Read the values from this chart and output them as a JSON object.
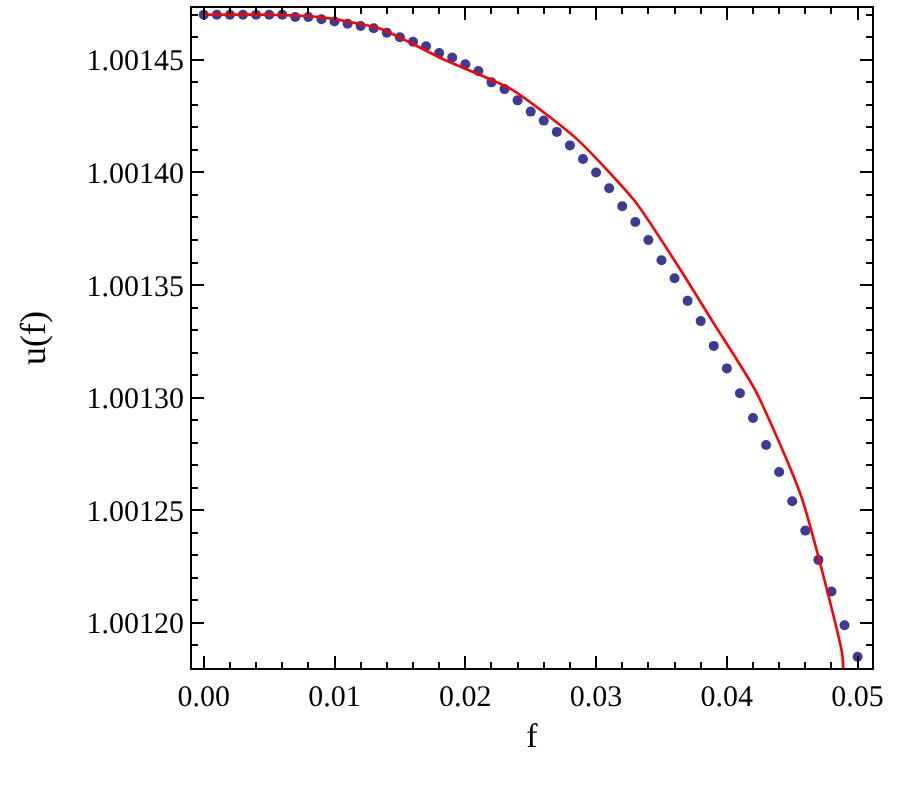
{
  "chart_data": {
    "type": "scatter",
    "xlabel": "f",
    "ylabel": "u(f)",
    "xlim": [
      -0.0009,
      0.0511
    ],
    "ylim": [
      1.00118,
      1.001473
    ],
    "xticks": [
      {
        "value": 0,
        "label": "0.00"
      },
      {
        "value": 0.01,
        "label": "0.01"
      },
      {
        "value": 0.02,
        "label": "0.02"
      },
      {
        "value": 0.03,
        "label": "0.03"
      },
      {
        "value": 0.04,
        "label": "0.04"
      },
      {
        "value": 0.05,
        "label": "0.05"
      }
    ],
    "yticks": [
      {
        "value": 1.0012,
        "label": "1.00120"
      },
      1.00125,
      {
        "value": 1.0013,
        "label": "1.00130"
      },
      1.00135,
      {
        "value": 1.0014,
        "label": "1.00140"
      },
      1.00145
    ],
    "marker": "circle",
    "series": [
      {
        "color": "#3c3c96",
        "x": [
          0,
          0.001,
          0.002,
          0.003,
          0.004,
          0.005,
          0.006,
          0.007,
          0.008,
          0.009,
          0.01,
          0.011,
          0.012,
          0.013,
          0.014,
          0.015,
          0.016,
          0.017,
          0.018,
          0.019,
          0.02,
          0.021,
          0.022,
          0.023,
          0.024,
          0.025,
          0.026,
          0.027,
          0.028,
          0.029,
          0.03,
          0.031,
          0.032,
          0.033,
          0.034,
          0.035,
          0.036,
          0.037,
          0.038,
          0.039,
          0.04,
          0.041,
          0.042,
          0.043,
          0.044,
          0.045,
          0.046,
          0.047,
          0.048,
          0.049,
          0.05
        ],
        "values": [
          1.00147,
          1.00147,
          1.00147,
          1.00147,
          1.00147,
          1.00147,
          1.00147,
          1.001469,
          1.001469,
          1.001468,
          1.001467,
          1.001466,
          1.001465,
          1.001464,
          1.001462,
          1.00146,
          1.001458,
          1.001456,
          1.001453,
          1.001451,
          1.001448,
          1.001445,
          1.00144,
          1.001437,
          1.001432,
          1.001427,
          1.001423,
          1.001418,
          1.001412,
          1.001406,
          1.0014,
          1.001393,
          1.001385,
          1.001378,
          1.00137,
          1.001361,
          1.001353,
          1.001343,
          1.001334,
          1.001323,
          1.001313,
          1.001302,
          1.001291,
          1.001279,
          1.001267,
          1.001254,
          1.001241,
          1.001228,
          1.001214,
          1.001199,
          1.001185
        ]
      },
      {
        "type": "line",
        "color": "#ff0000",
        "marker": "none",
        "line_style": "solid",
        "x": [
          0,
          0.005,
          0.0088,
          0.0134,
          0.0184,
          0.0235,
          0.0285,
          0.033,
          0.0361,
          0.039,
          0.0422,
          0.0457,
          0.0488,
          0.0489
        ],
        "values": [
          1.00147,
          1.00147,
          1.001469,
          1.001464,
          1.00145,
          1.001437,
          1.001415,
          1.001387,
          1.00136,
          1.001333,
          1.001303,
          1.001256,
          1.001187,
          1.00118
        ]
      }
    ]
  }
}
